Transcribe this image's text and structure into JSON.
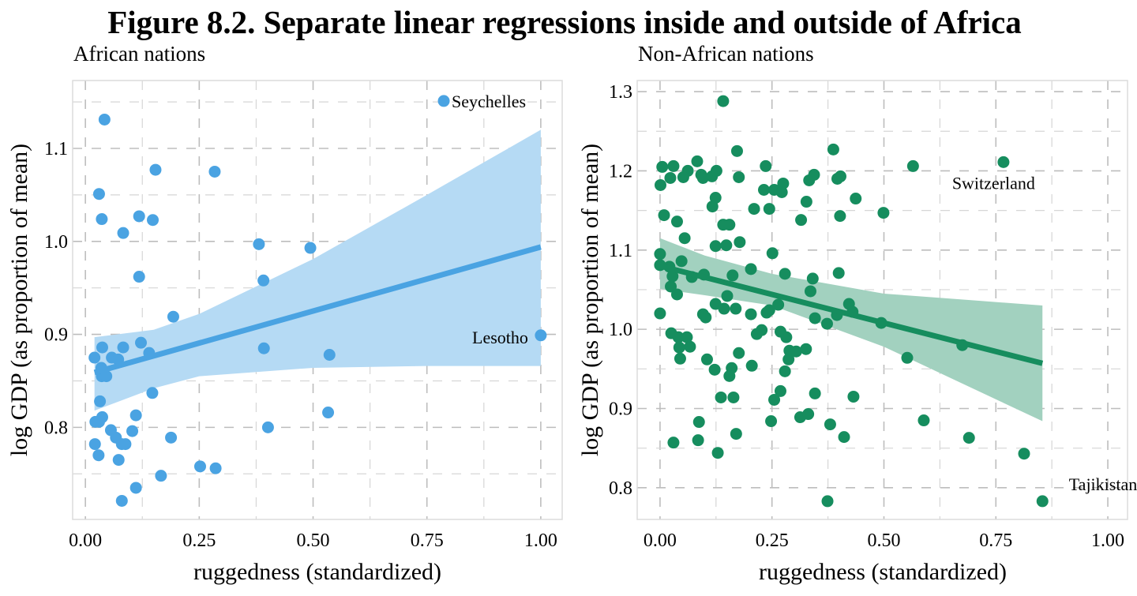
{
  "title": "Figure 8.2. Separate linear regressions inside and outside of Africa",
  "chart_data": [
    {
      "type": "scatter",
      "subtitle": "African nations",
      "xlabel": "ruggedness (standardized)",
      "ylabel": "log GDP (as proportion of mean)",
      "xlim": [
        -0.028,
        1.047
      ],
      "ylim": [
        0.701,
        1.173
      ],
      "xticks": [
        "0.00",
        "0.25",
        "0.50",
        "0.75",
        "1.00"
      ],
      "xtick_values": [
        0,
        0.25,
        0.5,
        0.75,
        1.0
      ],
      "yticks": [
        "0.8",
        "0.9",
        "1.0",
        "1.1"
      ],
      "ytick_values": [
        0.8,
        0.9,
        1.0,
        1.1
      ],
      "grid": true,
      "color": "#4AA3E2",
      "ribbon_color": "#B5DAF4",
      "points": [
        [
          0.787,
          1.151
        ],
        [
          0.042,
          1.131
        ],
        [
          0.154,
          1.077
        ],
        [
          0.284,
          1.075
        ],
        [
          0.03,
          1.051
        ],
        [
          0.036,
          1.024
        ],
        [
          0.118,
          1.027
        ],
        [
          0.148,
          1.023
        ],
        [
          0.083,
          1.009
        ],
        [
          0.381,
          0.997
        ],
        [
          0.494,
          0.993
        ],
        [
          0.118,
          0.962
        ],
        [
          0.391,
          0.958
        ],
        [
          0.193,
          0.919
        ],
        [
          1.0,
          0.899
        ],
        [
          0.122,
          0.891
        ],
        [
          0.037,
          0.886
        ],
        [
          0.083,
          0.886
        ],
        [
          0.14,
          0.88
        ],
        [
          0.392,
          0.885
        ],
        [
          0.536,
          0.878
        ],
        [
          0.02,
          0.875
        ],
        [
          0.058,
          0.875
        ],
        [
          0.072,
          0.873
        ],
        [
          0.035,
          0.864
        ],
        [
          0.036,
          0.855
        ],
        [
          0.046,
          0.855
        ],
        [
          0.147,
          0.837
        ],
        [
          0.032,
          0.828
        ],
        [
          0.037,
          0.811
        ],
        [
          0.111,
          0.813
        ],
        [
          0.533,
          0.816
        ],
        [
          0.022,
          0.806
        ],
        [
          0.03,
          0.806
        ],
        [
          0.056,
          0.797
        ],
        [
          0.103,
          0.796
        ],
        [
          0.401,
          0.8
        ],
        [
          0.188,
          0.789
        ],
        [
          0.067,
          0.789
        ],
        [
          0.08,
          0.782
        ],
        [
          0.088,
          0.782
        ],
        [
          0.021,
          0.782
        ],
        [
          0.029,
          0.77
        ],
        [
          0.073,
          0.765
        ],
        [
          0.252,
          0.758
        ],
        [
          0.286,
          0.756
        ],
        [
          0.166,
          0.748
        ],
        [
          0.111,
          0.735
        ],
        [
          0.08,
          0.721
        ]
      ],
      "labels": [
        {
          "text": "Seychelles",
          "x": 0.787,
          "y": 1.151,
          "side": "right"
        },
        {
          "text": "Lesotho",
          "x": 1.0,
          "y": 0.899,
          "side": "left"
        }
      ],
      "fit_line": [
        [
          0.02,
          0.859
        ],
        [
          1.0,
          0.994
        ]
      ],
      "ribbon": {
        "x": [
          0.02,
          0.15,
          0.25,
          0.5,
          0.75,
          1.0
        ],
        "upper": [
          0.897,
          0.905,
          0.922,
          0.981,
          1.05,
          1.12
        ],
        "lower": [
          0.818,
          0.842,
          0.855,
          0.864,
          0.866,
          0.866
        ]
      }
    },
    {
      "type": "scatter",
      "subtitle": "Non-African nations",
      "xlabel": "ruggedness (standardized)",
      "ylabel": "log GDP (as proportion of mean)",
      "xlim": [
        -0.051,
        1.044
      ],
      "ylim": [
        0.76,
        1.314
      ],
      "xticks": [
        "0.00",
        "0.25",
        "0.50",
        "0.75",
        "1.00"
      ],
      "xtick_values": [
        0,
        0.25,
        0.5,
        0.75,
        1.0
      ],
      "yticks": [
        "0.8",
        "0.9",
        "1.0",
        "1.1",
        "1.2",
        "1.3"
      ],
      "ytick_values": [
        0.8,
        0.9,
        1.0,
        1.1,
        1.2,
        1.3
      ],
      "grid": true,
      "color": "#168D5E",
      "ribbon_color": "#A2D1BF",
      "points": [
        [
          0.141,
          1.288
        ],
        [
          0.172,
          1.225
        ],
        [
          0.387,
          1.227
        ],
        [
          0.767,
          1.211
        ],
        [
          0.565,
          1.206
        ],
        [
          0.005,
          1.205
        ],
        [
          0.03,
          1.206
        ],
        [
          0.083,
          1.212
        ],
        [
          0.062,
          1.2
        ],
        [
          0.052,
          1.192
        ],
        [
          0.023,
          1.191
        ],
        [
          0.001,
          1.182
        ],
        [
          0.092,
          1.195
        ],
        [
          0.096,
          1.191
        ],
        [
          0.116,
          1.193
        ],
        [
          0.126,
          1.2
        ],
        [
          0.176,
          1.192
        ],
        [
          0.236,
          1.206
        ],
        [
          0.232,
          1.176
        ],
        [
          0.255,
          1.176
        ],
        [
          0.272,
          1.173
        ],
        [
          0.275,
          1.184
        ],
        [
          0.333,
          1.188
        ],
        [
          0.344,
          1.195
        ],
        [
          0.396,
          1.19
        ],
        [
          0.403,
          1.193
        ],
        [
          0.124,
          1.166
        ],
        [
          0.117,
          1.155
        ],
        [
          0.21,
          1.152
        ],
        [
          0.244,
          1.152
        ],
        [
          0.327,
          1.161
        ],
        [
          0.437,
          1.165
        ],
        [
          0.499,
          1.147
        ],
        [
          0.402,
          1.143
        ],
        [
          0.315,
          1.138
        ],
        [
          0.009,
          1.144
        ],
        [
          0.038,
          1.136
        ],
        [
          0.141,
          1.132
        ],
        [
          0.155,
          1.132
        ],
        [
          0.055,
          1.115
        ],
        [
          0.178,
          1.11
        ],
        [
          0.124,
          1.105
        ],
        [
          0.148,
          1.106
        ],
        [
          0.0,
          1.095
        ],
        [
          0.251,
          1.096
        ],
        [
          0.048,
          1.086
        ],
        [
          0.0,
          1.081
        ],
        [
          0.021,
          1.079
        ],
        [
          0.203,
          1.076
        ],
        [
          0.028,
          1.067
        ],
        [
          0.071,
          1.066
        ],
        [
          0.098,
          1.069
        ],
        [
          0.162,
          1.068
        ],
        [
          0.279,
          1.07
        ],
        [
          0.341,
          1.064
        ],
        [
          0.399,
          1.071
        ],
        [
          0.024,
          1.054
        ],
        [
          0.038,
          1.044
        ],
        [
          0.15,
          1.042
        ],
        [
          0.336,
          1.048
        ],
        [
          0.124,
          1.032
        ],
        [
          0.143,
          1.026
        ],
        [
          0.169,
          1.026
        ],
        [
          0.264,
          1.031
        ],
        [
          0.244,
          1.024
        ],
        [
          0.238,
          1.021
        ],
        [
          0.422,
          1.032
        ],
        [
          0.43,
          1.022
        ],
        [
          0.395,
          1.018
        ],
        [
          0.0,
          1.02
        ],
        [
          0.096,
          1.019
        ],
        [
          0.102,
          1.015
        ],
        [
          0.203,
          1.019
        ],
        [
          0.346,
          1.014
        ],
        [
          0.373,
          1.007
        ],
        [
          0.494,
          1.008
        ],
        [
          0.025,
          0.995
        ],
        [
          0.041,
          0.99
        ],
        [
          0.06,
          0.99
        ],
        [
          0.067,
          0.978
        ],
        [
          0.043,
          0.977
        ],
        [
          0.045,
          0.963
        ],
        [
          0.216,
          0.994
        ],
        [
          0.227,
          0.999
        ],
        [
          0.269,
          0.997
        ],
        [
          0.282,
          0.99
        ],
        [
          0.289,
          0.973
        ],
        [
          0.304,
          0.972
        ],
        [
          0.326,
          0.975
        ],
        [
          0.287,
          0.962
        ],
        [
          0.176,
          0.97
        ],
        [
          0.105,
          0.962
        ],
        [
          0.122,
          0.949
        ],
        [
          0.16,
          0.951
        ],
        [
          0.155,
          0.941
        ],
        [
          0.205,
          0.954
        ],
        [
          0.279,
          0.947
        ],
        [
          0.675,
          0.98
        ],
        [
          0.552,
          0.964
        ],
        [
          0.269,
          0.922
        ],
        [
          0.255,
          0.911
        ],
        [
          0.346,
          0.919
        ],
        [
          0.432,
          0.915
        ],
        [
          0.136,
          0.914
        ],
        [
          0.164,
          0.914
        ],
        [
          0.087,
          0.883
        ],
        [
          0.248,
          0.884
        ],
        [
          0.313,
          0.889
        ],
        [
          0.331,
          0.893
        ],
        [
          0.38,
          0.88
        ],
        [
          0.589,
          0.885
        ],
        [
          0.17,
          0.868
        ],
        [
          0.085,
          0.86
        ],
        [
          0.03,
          0.857
        ],
        [
          0.411,
          0.864
        ],
        [
          0.69,
          0.863
        ],
        [
          0.129,
          0.844
        ],
        [
          0.813,
          0.843
        ],
        [
          0.374,
          0.783
        ],
        [
          0.854,
          0.783
        ]
      ],
      "labels": [
        {
          "text": "Switzerland",
          "x": 0.767,
          "y": 1.211,
          "side": "below-left"
        },
        {
          "text": "Tajikistan",
          "x": 0.854,
          "y": 0.783,
          "side": "above-left"
        }
      ],
      "fit_line": [
        [
          0.0,
          1.08
        ],
        [
          0.854,
          0.957
        ]
      ],
      "ribbon": {
        "x": [
          0.0,
          0.1,
          0.25,
          0.5,
          0.854
        ],
        "upper": [
          1.115,
          1.093,
          1.07,
          1.045,
          1.03
        ],
        "lower": [
          1.051,
          1.043,
          1.03,
          0.978,
          0.884
        ]
      }
    }
  ]
}
